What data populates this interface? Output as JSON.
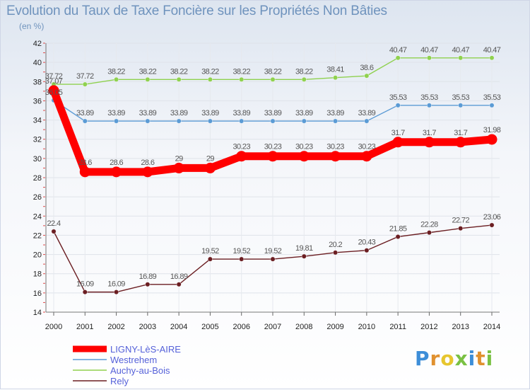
{
  "header": {
    "title": "Evolution du Taux de Taxe Foncière sur les Propriétés Non Bâties",
    "subtitle": "(en %)"
  },
  "logo": {
    "text": "Proxiti",
    "letter_colors": [
      "#3d8ed8",
      "#e0912f",
      "#e7c62e",
      "#7ac143",
      "#3d8ed8",
      "#e0912f",
      "#7ac143"
    ]
  },
  "chart_data": {
    "type": "line",
    "title": "Evolution du Taux de Taxe Foncière sur les Propriétés Non Bâties",
    "ylabel": "(en %)",
    "xlabel": "",
    "x": [
      "2000",
      "2001",
      "2002",
      "2003",
      "2004",
      "2005",
      "2006",
      "2007",
      "2008",
      "2009",
      "2010",
      "2011",
      "2012",
      "2013",
      "2014"
    ],
    "ylim": [
      14,
      42
    ],
    "yticks": [
      14,
      16,
      18,
      20,
      22,
      24,
      26,
      28,
      30,
      32,
      34,
      36,
      38,
      40,
      42
    ],
    "grid": true,
    "legend_position": "bottom-left",
    "series": [
      {
        "name": "LIGNY-LèS-AIRE",
        "color": "#ff0000",
        "emphasis": true,
        "values": [
          37.07,
          28.6,
          28.6,
          28.6,
          29,
          29,
          30.23,
          30.23,
          30.23,
          30.23,
          30.23,
          31.7,
          31.7,
          31.7,
          31.98
        ],
        "labels": [
          "37.07",
          "28.6",
          "28.6",
          "28.6",
          "29",
          "29",
          "30.23",
          "30.23",
          "30.23",
          "30.23",
          "30.23",
          "31.7",
          "31.7",
          "31.7",
          "31.98"
        ]
      },
      {
        "name": "Westrehem",
        "color": "#5b9bd5",
        "values": [
          36.05,
          33.89,
          33.89,
          33.89,
          33.89,
          33.89,
          33.89,
          33.89,
          33.89,
          33.89,
          33.89,
          35.53,
          35.53,
          35.53,
          35.53
        ],
        "labels": [
          "36.05",
          "33.89",
          "33.89",
          "33.89",
          "33.89",
          "33.89",
          "33.89",
          "33.89",
          "33.89",
          "33.89",
          "33.89",
          "35.53",
          "35.53",
          "35.53",
          "35.53"
        ]
      },
      {
        "name": "Auchy-au-Bois",
        "color": "#8fd14f",
        "values": [
          37.72,
          37.72,
          38.22,
          38.22,
          38.22,
          38.22,
          38.22,
          38.22,
          38.22,
          38.41,
          38.6,
          40.47,
          40.47,
          40.47,
          40.47
        ],
        "labels": [
          "37.72",
          "37.72",
          "38.22",
          "38.22",
          "38.22",
          "38.22",
          "38.22",
          "38.22",
          "38.22",
          "38.41",
          "38.6",
          "40.47",
          "40.47",
          "40.47",
          "40.47"
        ]
      },
      {
        "name": "Rely",
        "color": "#6b1e22",
        "values": [
          22.4,
          16.09,
          16.09,
          16.89,
          16.89,
          19.52,
          19.52,
          19.52,
          19.81,
          20.2,
          20.43,
          21.85,
          22.28,
          22.72,
          23.06
        ],
        "labels": [
          "22.4",
          "16.09",
          "16.09",
          "16.89",
          "16.89",
          "19.52",
          "19.52",
          "19.52",
          "19.81",
          "20.2",
          "20.43",
          "21.85",
          "22.28",
          "22.72",
          "23.06"
        ]
      }
    ]
  }
}
